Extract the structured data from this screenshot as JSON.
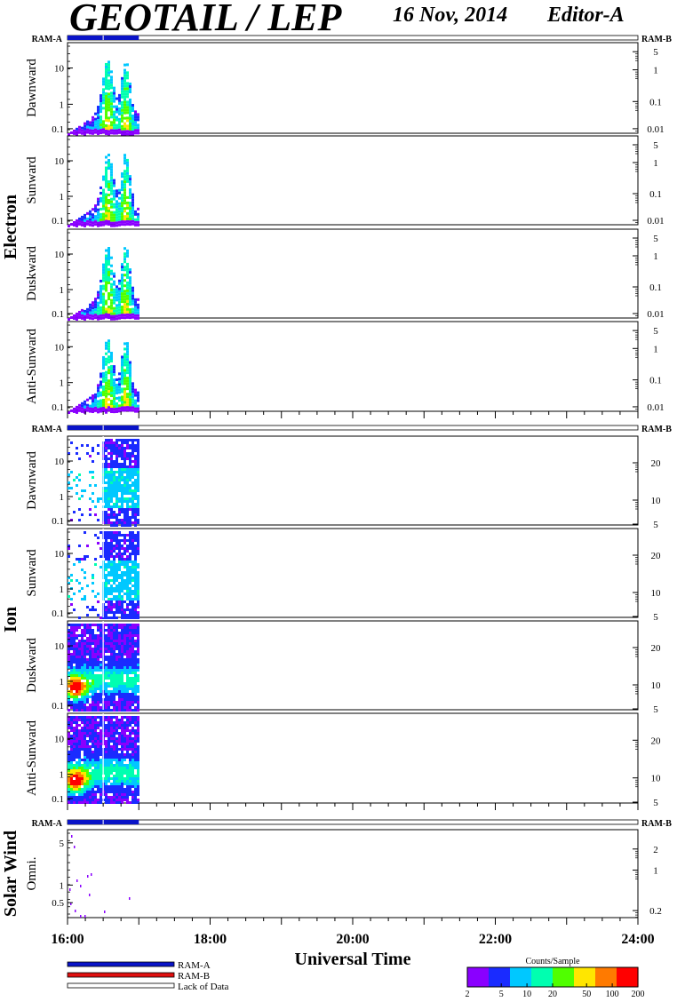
{
  "header": {
    "title": "GEOTAIL / LEP",
    "date": "16 Nov, 2014",
    "editor": "Editor-A"
  },
  "groups": [
    {
      "label": "Electron",
      "ram_a": "RAM-A",
      "ram_b": "RAM-B"
    },
    {
      "label": "Ion",
      "ram_a": "RAM-A",
      "ram_b": "RAM-B"
    },
    {
      "label": "Solar Wind",
      "ram_a": "RAM-A",
      "ram_b": "RAM-B"
    }
  ],
  "panels": [
    {
      "group": 0,
      "label": "Dawnward",
      "left_ticks": [
        "10",
        "1",
        "0.1"
      ],
      "right_ticks": [
        "5",
        "1",
        "0.1",
        "0.01"
      ]
    },
    {
      "group": 0,
      "label": "Sunward",
      "left_ticks": [
        "10",
        "1",
        "0.1"
      ],
      "right_ticks": [
        "5",
        "1",
        "0.1",
        "0.01"
      ]
    },
    {
      "group": 0,
      "label": "Duskward",
      "left_ticks": [
        "10",
        "1",
        "0.1"
      ],
      "right_ticks": [
        "5",
        "1",
        "0.1",
        "0.01"
      ]
    },
    {
      "group": 0,
      "label": "Anti-Sunward",
      "left_ticks": [
        "10",
        "1",
        "0.1"
      ],
      "right_ticks": [
        "5",
        "1",
        "0.1",
        "0.01"
      ]
    },
    {
      "group": 1,
      "label": "Dawnward",
      "left_ticks": [
        "10",
        "1",
        "0.1"
      ],
      "right_ticks": [
        "20",
        "10",
        "5"
      ]
    },
    {
      "group": 1,
      "label": "Sunward",
      "left_ticks": [
        "10",
        "1",
        "0.1"
      ],
      "right_ticks": [
        "20",
        "10",
        "5"
      ]
    },
    {
      "group": 1,
      "label": "Duskward",
      "left_ticks": [
        "10",
        "1",
        "0.1"
      ],
      "right_ticks": [
        "20",
        "10",
        "5"
      ]
    },
    {
      "group": 1,
      "label": "Anti-Sunward",
      "left_ticks": [
        "10",
        "1",
        "0.1"
      ],
      "right_ticks": [
        "20",
        "10",
        "5"
      ]
    },
    {
      "group": 2,
      "label": "Omni.",
      "left_ticks": [
        "5",
        "1",
        "0.5"
      ],
      "right_ticks": [
        "2",
        "1",
        "0.2"
      ]
    }
  ],
  "chart_data": {
    "type": "heatmap",
    "x_axis": {
      "label": "Universal Time",
      "ticks": [
        "16:00",
        "18:00",
        "20:00",
        "22:00",
        "24:00"
      ],
      "range_hours": [
        16,
        24
      ]
    },
    "data_coverage_hours": [
      16.0,
      17.0
    ],
    "ram_mode": "RAM-A",
    "colorbar": {
      "label": "Counts/Sample",
      "ticks": [
        "2",
        "5",
        "10",
        "20",
        "50",
        "100",
        "200"
      ],
      "scale": "log",
      "range": [
        2,
        200
      ],
      "colors": [
        "#8a00ff",
        "#1a2bff",
        "#00c8ff",
        "#00ffb0",
        "#50ff00",
        "#ffe600",
        "#ff7a00",
        "#ff0000"
      ]
    },
    "legend": [
      {
        "label": "RAM-A",
        "color": "#0a14c8"
      },
      {
        "label": "RAM-B",
        "color": "#e01010"
      },
      {
        "label": "Lack of Data",
        "color": "#ffffff"
      }
    ],
    "y_axis_scale": "log"
  }
}
